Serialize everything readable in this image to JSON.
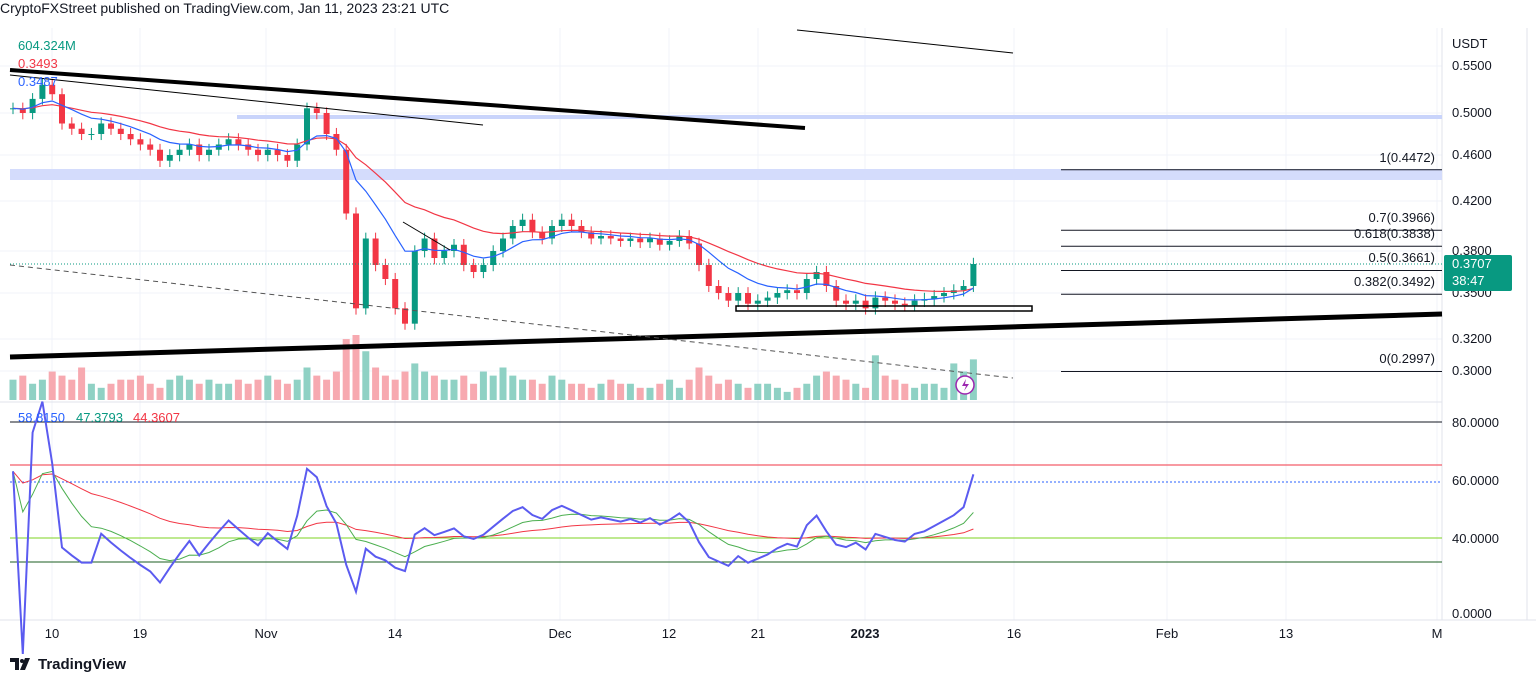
{
  "header": {
    "text": "CryptoFXStreet published on TradingView.com, Jan 11, 2023 23:21 UTC"
  },
  "legend": {
    "volume": "604.324M",
    "ma_slow": "0.3493",
    "ma_fast": "0.3487"
  },
  "price_axis": {
    "currency": "USDT",
    "ticks": [
      "0.5500",
      "0.5000",
      "0.4600",
      "0.4200",
      "0.3800",
      "0.3500",
      "0.3200",
      "0.3000"
    ],
    "last_price": "0.3707",
    "countdown": "38:47"
  },
  "fib": [
    {
      "label": "1(0.4472)",
      "price": 0.4472
    },
    {
      "label": "0.7(0.3966)",
      "price": 0.3966
    },
    {
      "label": "0.618(0.3838)",
      "price": 0.3838
    },
    {
      "label": "0.5(0.3661)",
      "price": 0.3661
    },
    {
      "label": "0.382(0.3492)",
      "price": 0.3492
    },
    {
      "label": "0(0.2997)",
      "price": 0.2997
    }
  ],
  "rsi": {
    "values": [
      "58.8150",
      "47.3793",
      "44.3607"
    ],
    "ticks": [
      "80.0000",
      "60.0000",
      "40.0000",
      "0.0000"
    ]
  },
  "time_axis": [
    "10",
    "19",
    "Nov",
    "14",
    "Dec",
    "12",
    "21",
    "2023",
    "16",
    "Feb",
    "13",
    "M"
  ],
  "footer": {
    "brand": "TradingView"
  },
  "colors": {
    "up": "#089981",
    "down": "#f23645",
    "ma_fast": "#2962ff",
    "ma_slow": "#f23645",
    "rsi": "#5b5bf0"
  },
  "chart_data": {
    "type": "candlestick",
    "start_date": "Oct 5",
    "closes": [
      0.505,
      0.5,
      0.515,
      0.53,
      0.52,
      0.49,
      0.485,
      0.48,
      0.48,
      0.49,
      0.485,
      0.48,
      0.475,
      0.47,
      0.465,
      0.455,
      0.46,
      0.465,
      0.47,
      0.46,
      0.465,
      0.47,
      0.475,
      0.47,
      0.465,
      0.46,
      0.465,
      0.46,
      0.455,
      0.47,
      0.505,
      0.5,
      0.48,
      0.465,
      0.41,
      0.34,
      0.39,
      0.37,
      0.36,
      0.34,
      0.33,
      0.38,
      0.39,
      0.375,
      0.38,
      0.385,
      0.37,
      0.365,
      0.37,
      0.38,
      0.39,
      0.4,
      0.405,
      0.395,
      0.39,
      0.4,
      0.405,
      0.4,
      0.395,
      0.39,
      0.392,
      0.39,
      0.388,
      0.39,
      0.387,
      0.39,
      0.385,
      0.388,
      0.392,
      0.386,
      0.37,
      0.355,
      0.35,
      0.345,
      0.35,
      0.343,
      0.345,
      0.347,
      0.35,
      0.352,
      0.35,
      0.36,
      0.365,
      0.355,
      0.345,
      0.343,
      0.345,
      0.34,
      0.347,
      0.345,
      0.343,
      0.342,
      0.345,
      0.346,
      0.348,
      0.35,
      0.352,
      0.355,
      0.3707
    ],
    "volumes": [
      0.5,
      0.6,
      0.4,
      0.5,
      0.7,
      0.6,
      0.5,
      0.8,
      0.4,
      0.3,
      0.4,
      0.5,
      0.5,
      0.6,
      0.4,
      0.3,
      0.5,
      0.6,
      0.5,
      0.4,
      0.5,
      0.4,
      0.4,
      0.5,
      0.4,
      0.5,
      0.6,
      0.5,
      0.4,
      0.5,
      0.8,
      0.6,
      0.5,
      0.7,
      1.5,
      1.6,
      1.2,
      0.8,
      0.6,
      0.5,
      0.7,
      0.9,
      0.7,
      0.6,
      0.5,
      0.5,
      0.6,
      0.4,
      0.7,
      0.6,
      0.8,
      0.6,
      0.5,
      0.5,
      0.4,
      0.6,
      0.5,
      0.4,
      0.4,
      0.3,
      0.4,
      0.5,
      0.4,
      0.4,
      0.3,
      0.3,
      0.4,
      0.5,
      0.3,
      0.5,
      0.8,
      0.6,
      0.4,
      0.5,
      0.4,
      0.3,
      0.4,
      0.4,
      0.3,
      0.2,
      0.3,
      0.4,
      0.6,
      0.7,
      0.6,
      0.5,
      0.4,
      0.3,
      1.1,
      0.6,
      0.5,
      0.4,
      0.3,
      0.4,
      0.4,
      0.3,
      0.9,
      0.7,
      1.0
    ]
  }
}
